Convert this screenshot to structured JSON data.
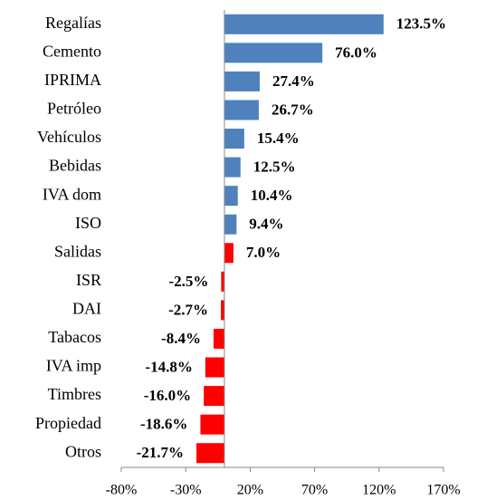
{
  "chart_data": {
    "type": "hbar",
    "categories": [
      "Regalías",
      "Cemento",
      "IPRIMA",
      "Petróleo",
      "Vehículos",
      "Bebidas",
      "IVA dom",
      "ISO",
      "Salidas",
      "ISR",
      "DAI",
      "Tabacos",
      "IVA imp",
      "Timbres",
      "Propiedad",
      "Otros"
    ],
    "values": [
      123.5,
      76.0,
      27.4,
      26.7,
      15.4,
      12.5,
      10.4,
      9.4,
      7.0,
      -2.5,
      -2.7,
      -8.4,
      -14.8,
      -16.0,
      -18.6,
      -21.7
    ],
    "value_labels": [
      "123.5%",
      "76.0%",
      "27.4%",
      "26.7%",
      "15.4%",
      "12.5%",
      "10.4%",
      "9.4%",
      "7.0%",
      "-2.5%",
      "-2.7%",
      "-8.4%",
      "-14.8%",
      "-16.0%",
      "-18.6%",
      "-21.7%"
    ],
    "colors": [
      "#4f81bd",
      "#4f81bd",
      "#4f81bd",
      "#4f81bd",
      "#4f81bd",
      "#4f81bd",
      "#4f81bd",
      "#4f81bd",
      "#ff0000",
      "#ff0000",
      "#ff0000",
      "#ff0000",
      "#ff0000",
      "#ff0000",
      "#ff0000",
      "#ff0000"
    ],
    "xlim": [
      -80,
      170
    ],
    "xticks": [
      {
        "value": -80,
        "label": "-80%"
      },
      {
        "value": -30,
        "label": "-30%"
      },
      {
        "value": 20,
        "label": "20%"
      },
      {
        "value": 70,
        "label": "70%"
      },
      {
        "value": 120,
        "label": "120%"
      },
      {
        "value": 170,
        "label": "170%"
      }
    ]
  }
}
